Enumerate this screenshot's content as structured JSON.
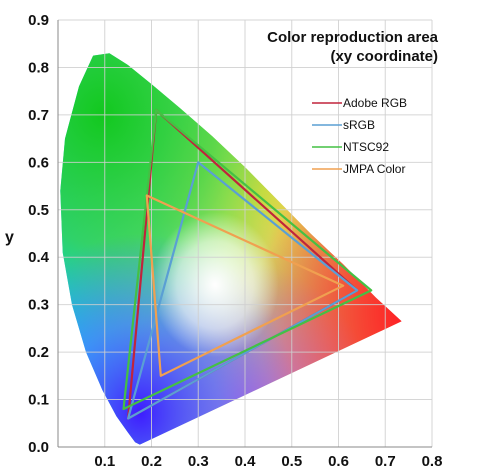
{
  "chart_data": {
    "type": "line",
    "title_lines": [
      "Color reproduction area",
      "(xy coordinate)"
    ],
    "xlabel": "",
    "ylabel": "y",
    "xlim": [
      0.0,
      0.8
    ],
    "ylim": [
      0.0,
      0.9
    ],
    "x_ticks": [
      "0.1",
      "0.2",
      "0.3",
      "0.4",
      "0.5",
      "0.6",
      "0.7",
      "0.8"
    ],
    "y_ticks": [
      "0.0",
      "0.1",
      "0.2",
      "0.3",
      "0.4",
      "0.5",
      "0.6",
      "0.7",
      "0.8",
      "0.9"
    ],
    "grid": true,
    "legend_position": "top-right",
    "spectral_locus": [
      [
        0.175,
        0.005
      ],
      [
        0.165,
        0.01
      ],
      [
        0.15,
        0.03
      ],
      [
        0.125,
        0.065
      ],
      [
        0.095,
        0.12
      ],
      [
        0.06,
        0.2
      ],
      [
        0.03,
        0.3
      ],
      [
        0.01,
        0.41
      ],
      [
        0.005,
        0.54
      ],
      [
        0.015,
        0.65
      ],
      [
        0.045,
        0.76
      ],
      [
        0.075,
        0.825
      ],
      [
        0.11,
        0.83
      ],
      [
        0.15,
        0.805
      ],
      [
        0.2,
        0.765
      ],
      [
        0.26,
        0.715
      ],
      [
        0.33,
        0.655
      ],
      [
        0.4,
        0.59
      ],
      [
        0.47,
        0.52
      ],
      [
        0.54,
        0.45
      ],
      [
        0.61,
        0.385
      ],
      [
        0.68,
        0.315
      ],
      [
        0.735,
        0.265
      ]
    ],
    "series": [
      {
        "name": "Adobe RGB",
        "color": "#c0243c",
        "values": [
          [
            0.64,
            0.33
          ],
          [
            0.21,
            0.71
          ],
          [
            0.15,
            0.06
          ]
        ]
      },
      {
        "name": "sRGB",
        "color": "#5a9fd4",
        "values": [
          [
            0.64,
            0.33
          ],
          [
            0.3,
            0.6
          ],
          [
            0.15,
            0.06
          ]
        ]
      },
      {
        "name": "NTSC92",
        "color": "#44c044",
        "values": [
          [
            0.67,
            0.33
          ],
          [
            0.21,
            0.71
          ],
          [
            0.14,
            0.08
          ]
        ]
      },
      {
        "name": "JMPA Color",
        "color": "#f0a050",
        "values": [
          [
            0.61,
            0.34
          ],
          [
            0.19,
            0.53
          ],
          [
            0.22,
            0.15
          ]
        ]
      }
    ]
  }
}
